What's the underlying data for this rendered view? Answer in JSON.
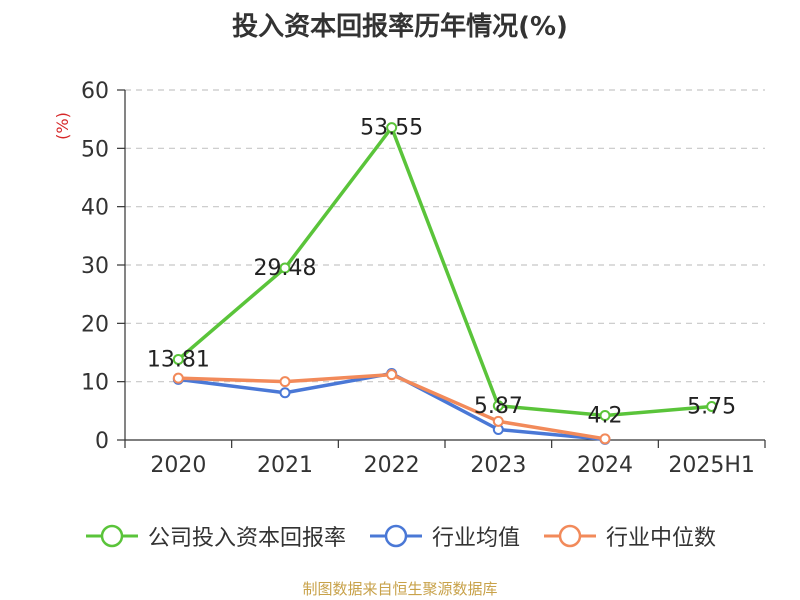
{
  "chart_data": {
    "type": "line",
    "title": "投入资本回报率历年情况(%)",
    "ylabel": "(%)",
    "xlabel": "",
    "categories": [
      "2020",
      "2021",
      "2022",
      "2023",
      "2024",
      "2025H1"
    ],
    "ylim": [
      0,
      60
    ],
    "yticks": [
      0,
      10,
      20,
      30,
      40,
      50,
      60
    ],
    "grid": true,
    "legend_position": "bottom",
    "series": [
      {
        "name": "公司投入资本回报率",
        "color": "#5ac43a",
        "values": [
          13.81,
          29.48,
          53.55,
          5.87,
          4.2,
          5.75
        ],
        "data_labels": [
          "13.81",
          "29.48",
          "53.55",
          "5.87",
          "4.2",
          "5.75"
        ]
      },
      {
        "name": "行业均值",
        "color": "#4a78d6",
        "values": [
          10.4,
          8.1,
          11.4,
          1.8,
          0.1,
          null
        ]
      },
      {
        "name": "行业中位数",
        "color": "#f28a5a",
        "values": [
          10.6,
          10.0,
          11.2,
          3.2,
          0.2,
          null
        ]
      }
    ]
  },
  "footer": {
    "source": "制图数据来自恒生聚源数据库"
  },
  "colors": {
    "ylabel": "#d62728",
    "grid": "#c8c8c8",
    "axis": "#333333"
  }
}
